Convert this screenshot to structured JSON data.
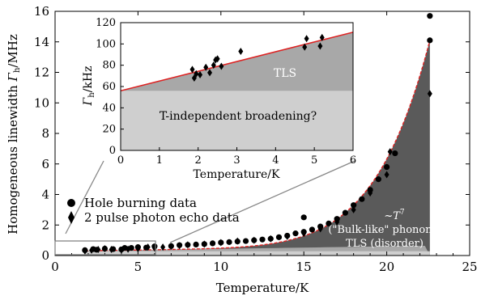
{
  "chart_data": [
    {
      "type": "scatter",
      "xlabel": "Temperature/K",
      "ylabel_main": "Homogeneous linewidth ",
      "ylabel_symbol": "Γ",
      "ylabel_sub": "h",
      "ylabel_unit": "/MHz",
      "xlim": [
        0,
        25
      ],
      "ylim": [
        0,
        16
      ],
      "xticks": [
        0,
        5,
        10,
        15,
        20,
        25
      ],
      "yticks": [
        0,
        2,
        4,
        6,
        8,
        10,
        12,
        14,
        16
      ],
      "legend_placement": "lower-left",
      "series": [
        {
          "name": "Hole burning data",
          "marker": "circle",
          "points": [
            [
              1.8,
              0.35
            ],
            [
              2.3,
              0.42
            ],
            [
              2.5,
              0.38
            ],
            [
              3.0,
              0.45
            ],
            [
              3.5,
              0.42
            ],
            [
              4.0,
              0.4
            ],
            [
              4.2,
              0.5
            ],
            [
              4.6,
              0.5
            ],
            [
              5.0,
              0.55
            ],
            [
              5.5,
              0.52
            ],
            [
              6.0,
              0.6
            ],
            [
              7.0,
              0.62
            ],
            [
              7.5,
              0.68
            ],
            [
              8.0,
              0.7
            ],
            [
              8.5,
              0.72
            ],
            [
              9.0,
              0.75
            ],
            [
              9.5,
              0.8
            ],
            [
              10.0,
              0.85
            ],
            [
              10.5,
              0.88
            ],
            [
              11.0,
              0.92
            ],
            [
              11.5,
              0.95
            ],
            [
              12.0,
              1.0
            ],
            [
              12.5,
              1.05
            ],
            [
              13.0,
              1.1
            ],
            [
              13.5,
              1.2
            ],
            [
              14.0,
              1.3
            ],
            [
              14.5,
              1.45
            ],
            [
              15.0,
              1.55
            ],
            [
              15.5,
              1.7
            ],
            [
              16.0,
              1.9
            ],
            [
              16.5,
              2.1
            ],
            [
              17.0,
              2.4
            ],
            [
              17.5,
              2.8
            ],
            [
              18.0,
              3.3
            ],
            [
              18.5,
              3.7
            ],
            [
              19.0,
              4.3
            ],
            [
              19.5,
              5.0
            ],
            [
              20.0,
              5.8
            ],
            [
              20.5,
              6.7
            ],
            [
              15.0,
              2.5
            ],
            [
              22.6,
              15.7
            ],
            [
              22.6,
              14.1
            ]
          ]
        },
        {
          "name": "2 pulse photon echo data",
          "marker": "diamond",
          "points": [
            [
              1.8,
              0.3
            ],
            [
              2.2,
              0.35
            ],
            [
              2.6,
              0.4
            ],
            [
              3.0,
              0.45
            ],
            [
              3.4,
              0.4
            ],
            [
              4.0,
              0.36
            ],
            [
              4.4,
              0.42
            ],
            [
              5.0,
              0.45
            ],
            [
              5.6,
              0.55
            ],
            [
              6.0,
              0.5
            ],
            [
              6.5,
              0.55
            ],
            [
              7.0,
              0.6
            ],
            [
              7.5,
              0.65
            ],
            [
              8.0,
              0.7
            ],
            [
              9.0,
              0.75
            ],
            [
              10.0,
              0.85
            ],
            [
              11.0,
              0.95
            ],
            [
              12.0,
              1.0
            ],
            [
              13.0,
              1.1
            ],
            [
              14.0,
              1.25
            ],
            [
              15.0,
              1.45
            ],
            [
              16.0,
              1.75
            ],
            [
              17.0,
              2.2
            ],
            [
              18.0,
              3.0
            ],
            [
              19.0,
              4.1
            ],
            [
              20.0,
              5.3
            ],
            [
              20.2,
              6.8
            ],
            [
              22.6,
              10.6
            ]
          ]
        }
      ],
      "fit_color": "#dd2222",
      "regions": {
        "top_label_main": "~",
        "top_label_T": "T",
        "top_label_exp": "7",
        "mid_label": "(\"Bulk-like\" phonon)",
        "low_label": "TLS (disorder)",
        "dark_color": "#5a5a5a",
        "light_color": "#a8a8a8",
        "lightest_color": "#cfcfcf"
      }
    },
    {
      "type": "scatter",
      "xlabel": "Temperature/K",
      "ylabel_symbol": "Γ",
      "ylabel_sub": "h",
      "ylabel_unit": "/kHz",
      "xlim": [
        0,
        6
      ],
      "ylim": [
        0,
        120
      ],
      "xticks": [
        0,
        1,
        2,
        3,
        4,
        5,
        6
      ],
      "yticks": [
        0,
        20,
        40,
        60,
        80,
        100,
        120
      ],
      "points": [
        [
          1.85,
          76
        ],
        [
          1.9,
          68
        ],
        [
          1.95,
          72
        ],
        [
          2.05,
          71
        ],
        [
          2.2,
          78
        ],
        [
          2.3,
          73
        ],
        [
          2.4,
          80
        ],
        [
          2.45,
          85
        ],
        [
          2.5,
          86
        ],
        [
          2.6,
          79
        ],
        [
          3.1,
          93
        ],
        [
          4.75,
          97
        ],
        [
          4.8,
          105
        ],
        [
          5.15,
          98
        ],
        [
          5.2,
          106
        ]
      ],
      "fit_line": [
        [
          0,
          56
        ],
        [
          6,
          111
        ]
      ],
      "tls_label": "TLS",
      "const_label": "T-independent broadening?",
      "const_level": 56
    }
  ],
  "legend": {
    "item1": "Hole burning data",
    "item2": "2 pulse photon echo data"
  }
}
